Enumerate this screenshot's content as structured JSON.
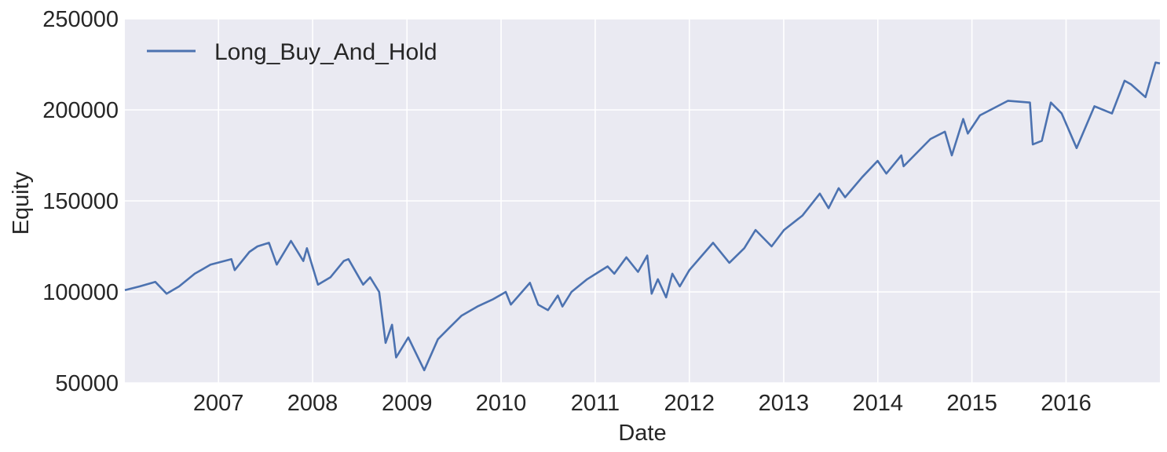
{
  "chart_data": {
    "type": "line",
    "title": "",
    "xlabel": "Date",
    "ylabel": "Equity",
    "xlim": [
      "2006-01-03",
      "2016-12-30"
    ],
    "ylim": [
      50000,
      250000
    ],
    "grid": true,
    "legend": {
      "placement": "top-left",
      "entries": [
        "Long_Buy_And_Hold"
      ]
    },
    "x_ticks": [
      "2007",
      "2008",
      "2009",
      "2010",
      "2011",
      "2012",
      "2013",
      "2014",
      "2015",
      "2016"
    ],
    "y_ticks": [
      "50000",
      "100000",
      "150000",
      "200000",
      "250000"
    ],
    "series": [
      {
        "name": "Long_Buy_And_Hold",
        "color": "#4c72b0",
        "points": [
          [
            "2006-01-03",
            101000
          ],
          [
            "2006-03-01",
            103000
          ],
          [
            "2006-05-01",
            105500
          ],
          [
            "2006-06-14",
            99000
          ],
          [
            "2006-08-01",
            103000
          ],
          [
            "2006-10-01",
            110000
          ],
          [
            "2006-12-01",
            115000
          ],
          [
            "2007-02-20",
            118000
          ],
          [
            "2007-03-05",
            112000
          ],
          [
            "2007-05-01",
            122000
          ],
          [
            "2007-06-01",
            125000
          ],
          [
            "2007-07-16",
            127000
          ],
          [
            "2007-08-15",
            115000
          ],
          [
            "2007-10-09",
            128000
          ],
          [
            "2007-11-26",
            117000
          ],
          [
            "2007-12-10",
            124000
          ],
          [
            "2008-01-22",
            104000
          ],
          [
            "2008-03-10",
            108000
          ],
          [
            "2008-05-01",
            117000
          ],
          [
            "2008-05-19",
            118000
          ],
          [
            "2008-07-15",
            104000
          ],
          [
            "2008-08-11",
            108000
          ],
          [
            "2008-09-15",
            100000
          ],
          [
            "2008-10-10",
            72000
          ],
          [
            "2008-11-04",
            82000
          ],
          [
            "2008-11-20",
            64000
          ],
          [
            "2009-01-06",
            75000
          ],
          [
            "2009-03-09",
            57000
          ],
          [
            "2009-05-01",
            74000
          ],
          [
            "2009-06-12",
            80000
          ],
          [
            "2009-08-01",
            87000
          ],
          [
            "2009-10-01",
            92000
          ],
          [
            "2009-12-01",
            96000
          ],
          [
            "2010-01-19",
            100000
          ],
          [
            "2010-02-08",
            93000
          ],
          [
            "2010-04-23",
            105000
          ],
          [
            "2010-05-25",
            93000
          ],
          [
            "2010-07-02",
            90000
          ],
          [
            "2010-08-09",
            98000
          ],
          [
            "2010-08-27",
            92000
          ],
          [
            "2010-10-01",
            100000
          ],
          [
            "2010-12-01",
            107000
          ],
          [
            "2011-02-18",
            114000
          ],
          [
            "2011-03-16",
            110000
          ],
          [
            "2011-05-02",
            119000
          ],
          [
            "2011-06-16",
            111000
          ],
          [
            "2011-07-22",
            120000
          ],
          [
            "2011-08-08",
            99000
          ],
          [
            "2011-09-01",
            107000
          ],
          [
            "2011-10-03",
            97000
          ],
          [
            "2011-10-27",
            110000
          ],
          [
            "2011-11-25",
            103000
          ],
          [
            "2012-01-01",
            112000
          ],
          [
            "2012-04-02",
            127000
          ],
          [
            "2012-06-04",
            116000
          ],
          [
            "2012-08-01",
            124000
          ],
          [
            "2012-09-14",
            134000
          ],
          [
            "2012-11-15",
            125000
          ],
          [
            "2013-01-02",
            134000
          ],
          [
            "2013-03-15",
            142000
          ],
          [
            "2013-05-21",
            154000
          ],
          [
            "2013-06-24",
            146000
          ],
          [
            "2013-08-02",
            157000
          ],
          [
            "2013-08-27",
            152000
          ],
          [
            "2013-11-01",
            163000
          ],
          [
            "2013-12-31",
            172000
          ],
          [
            "2014-02-03",
            165000
          ],
          [
            "2014-04-02",
            175000
          ],
          [
            "2014-04-11",
            169000
          ],
          [
            "2014-07-24",
            184000
          ],
          [
            "2014-09-18",
            188000
          ],
          [
            "2014-10-15",
            175000
          ],
          [
            "2014-11-28",
            195000
          ],
          [
            "2014-12-16",
            187000
          ],
          [
            "2015-02-01",
            197000
          ],
          [
            "2015-05-21",
            205000
          ],
          [
            "2015-08-14",
            204000
          ],
          [
            "2015-08-25",
            181000
          ],
          [
            "2015-09-29",
            183000
          ],
          [
            "2015-11-03",
            204000
          ],
          [
            "2015-12-15",
            198000
          ],
          [
            "2016-02-11",
            179000
          ],
          [
            "2016-04-20",
            202000
          ],
          [
            "2016-06-27",
            198000
          ],
          [
            "2016-08-15",
            216000
          ],
          [
            "2016-09-09",
            214000
          ],
          [
            "2016-11-04",
            207000
          ],
          [
            "2016-12-13",
            226000
          ],
          [
            "2016-12-30",
            225500
          ]
        ]
      }
    ]
  }
}
